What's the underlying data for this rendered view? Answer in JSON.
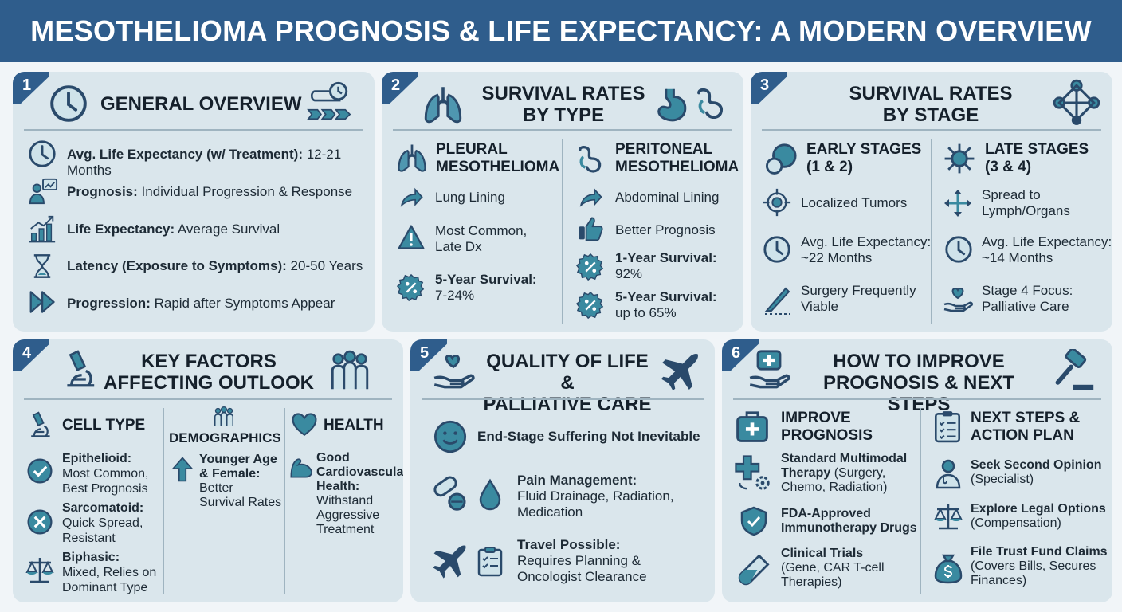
{
  "title": "MESOTHELIOMA PROGNOSIS & LIFE EXPECTANCY: A MODERN OVERVIEW",
  "panel1": {
    "num": "1",
    "title": "GENERAL OVERVIEW",
    "items": [
      {
        "label": "Avg. Life Expectancy (w/ Treatment):",
        "value": " 12-21 Months",
        "icon": "clock-icon"
      },
      {
        "label": "Prognosis:",
        "value": " Individual Progression & Response",
        "icon": "people-chart-icon"
      },
      {
        "label": "Life Expectancy:",
        "value": " Average Survival",
        "icon": "bar-chart-icon"
      },
      {
        "label": "Latency (Exposure to Symptoms):",
        "value": " 20-50 Years",
        "icon": "hourglass-icon"
      },
      {
        "label": "Progression:",
        "value": " Rapid after Symptoms Appear",
        "icon": "fast-forward-icon"
      }
    ]
  },
  "panel2": {
    "num": "2",
    "title_l1": "SURVIVAL RATES",
    "title_l2": "BY TYPE",
    "left": {
      "head_l1": "PLEURAL",
      "head_l2": "MESOTHELIOMA",
      "item1": "Lung Lining",
      "item2_l1": "Most Common,",
      "item2_l2": "Late Dx",
      "item3_label": "5-Year Survival:",
      "item3_value": "7-24%"
    },
    "right": {
      "head_l1": "PERITONEAL",
      "head_l2": "MESOTHELIOMA",
      "item1": "Abdominal Lining",
      "item2": "Better Prognosis",
      "item3_label": "1-Year Survival:",
      "item3_value": "92%",
      "item4_label": "5-Year Survival:",
      "item4_value": "up to 65%"
    }
  },
  "panel3": {
    "num": "3",
    "title_l1": "SURVIVAL RATES",
    "title_l2": "BY STAGE",
    "left": {
      "head_l1": "EARLY STAGES",
      "head_l2": "(1 & 2)",
      "item1": "Localized Tumors",
      "item2_l1": "Avg. Life Expectancy:",
      "item2_l2": "~22 Months",
      "item3_l1": "Surgery Frequently",
      "item3_l2": "Viable"
    },
    "right": {
      "head_l1": "LATE STAGES",
      "head_l2": "(3 & 4)",
      "item1_l1": "Spread to",
      "item1_l2": "Lymph/Organs",
      "item2_l1": "Avg. Life Expectancy:",
      "item2_l2": "~14 Months",
      "item3_l1": "Stage 4 Focus:",
      "item3_l2": "Palliative Care"
    }
  },
  "panel4": {
    "num": "4",
    "title_l1": "KEY FACTORS",
    "title_l2": "AFFECTING OUTLOOK",
    "col1": {
      "head": "CELL TYPE",
      "a_label": "Epithelioid:",
      "a_l1": "Most Common,",
      "a_l2": "Best Prognosis",
      "b_label": "Sarcomatoid:",
      "b_l1": "Quick Spread,",
      "b_l2": "Resistant",
      "c_label": "Biphasic:",
      "c_l1": "Mixed, Relies on",
      "c_l2": "Dominant Type"
    },
    "col2": {
      "head": "DEMOGRAPHICS",
      "label_l1": "Younger Age",
      "label_l2": "& Female:",
      "l1": "Better",
      "l2": "Survival Rates"
    },
    "col3": {
      "head": "HEALTH",
      "label_l1": "Good",
      "label_l2": "Cardiovascular",
      "label_l3": "Health:",
      "l1": "Withstand",
      "l2": "Aggressive",
      "l3": "Treatment"
    }
  },
  "panel5": {
    "num": "5",
    "title_l1": "QUALITY OF LIFE &",
    "title_l2": "PALLIATIVE CARE",
    "item1": "End-Stage Suffering Not Inevitable",
    "item2_label": "Pain Management:",
    "item2_l1": "Fluid Drainage, Radiation,",
    "item2_l2": "Medication",
    "item3_label": "Travel Possible:",
    "item3_l1": "Requires Planning &",
    "item3_l2": "Oncologist Clearance"
  },
  "panel6": {
    "num": "6",
    "title_l1": "HOW TO IMPROVE",
    "title_l2": "PROGNOSIS & NEXT STEPS",
    "left": {
      "head_l1": "IMPROVE",
      "head_l2": "PROGNOSIS",
      "a_l1": "Standard Multimodal",
      "a_l2": "Therapy",
      "a_l2b": " (Surgery,",
      "a_l3": "Chemo, Radiation)",
      "b_l1": "FDA-Approved",
      "b_l2": "Immunotherapy Drugs",
      "c_label": "Clinical Trials",
      "c_l1": "(Gene, CAR T-cell",
      "c_l2": "Therapies)"
    },
    "right": {
      "head_l1": "NEXT STEPS &",
      "head_l2": "ACTION PLAN",
      "a_label": "Seek Second Opinion",
      "a_l1": "(Specialist)",
      "b_label": "Explore Legal Options",
      "b_l1": "(Compensation)",
      "c_label": "File Trust Fund Claims",
      "c_l1": "(Covers Bills, Secures",
      "c_l2": "Finances)"
    }
  },
  "colors": {
    "header": "#2f5d8c",
    "panel": "#dae6ec",
    "icon_dark": "#2a4a6b",
    "icon_teal": "#3a8aa0"
  }
}
